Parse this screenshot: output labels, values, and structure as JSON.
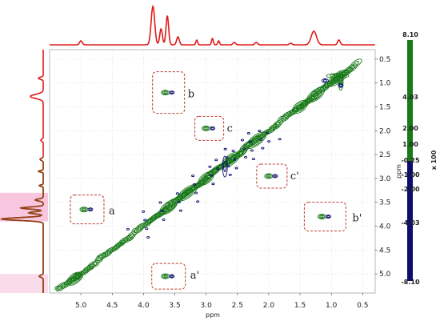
{
  "chart_data": {
    "type": "heatmap",
    "subtype": "2D NMR contour spectrum with 1D projections",
    "xlabel": "ppm",
    "ylabel": "ppm",
    "x_axis_direction": "decreasing",
    "xlim": [
      5.5,
      0.3
    ],
    "ylim": [
      0.3,
      5.4
    ],
    "x_ticks": [
      "5.0",
      "4.5",
      "4.0",
      "3.5",
      "3.0",
      "2.5",
      "2.0",
      "1.5",
      "1.0",
      "0.5"
    ],
    "y_ticks": [
      "0.5",
      "1.0",
      "1.5",
      "2.0",
      "2.5",
      "3.0",
      "3.5",
      "4.0",
      "4.5",
      "5.0"
    ],
    "grid": true,
    "colorbar": {
      "title": "x 100",
      "labels": [
        "8.10",
        "4.03",
        "2.00",
        "1.00",
        "-0.25",
        "-1.00",
        "-2.00",
        "-4.03",
        "-8.10"
      ],
      "positive_color": "#1a7a1a",
      "negative_color": "#0d0d6e"
    },
    "projection_color": "#e01a1a",
    "highlight_color": "#f6b8d6",
    "diagonal_peaks": [
      {
        "ppm": 5.1
      },
      {
        "ppm": 3.6
      },
      {
        "ppm": 3.3
      },
      {
        "ppm": 3.0
      },
      {
        "ppm": 2.6
      },
      {
        "ppm": 2.2
      },
      {
        "ppm": 1.5
      },
      {
        "ppm": 1.25
      },
      {
        "ppm": 0.9
      }
    ],
    "annotated_cross_peaks": [
      {
        "label": "a",
        "x": 4.9,
        "y": 3.65
      },
      {
        "label": "a'",
        "x": 3.6,
        "y": 5.05
      },
      {
        "label": "b",
        "x": 3.6,
        "y": 1.2
      },
      {
        "label": "b'",
        "x": 1.1,
        "y": 3.8
      },
      {
        "label": "c",
        "x": 2.95,
        "y": 1.95
      },
      {
        "label": "c'",
        "x": 1.95,
        "y": 2.95
      }
    ]
  }
}
